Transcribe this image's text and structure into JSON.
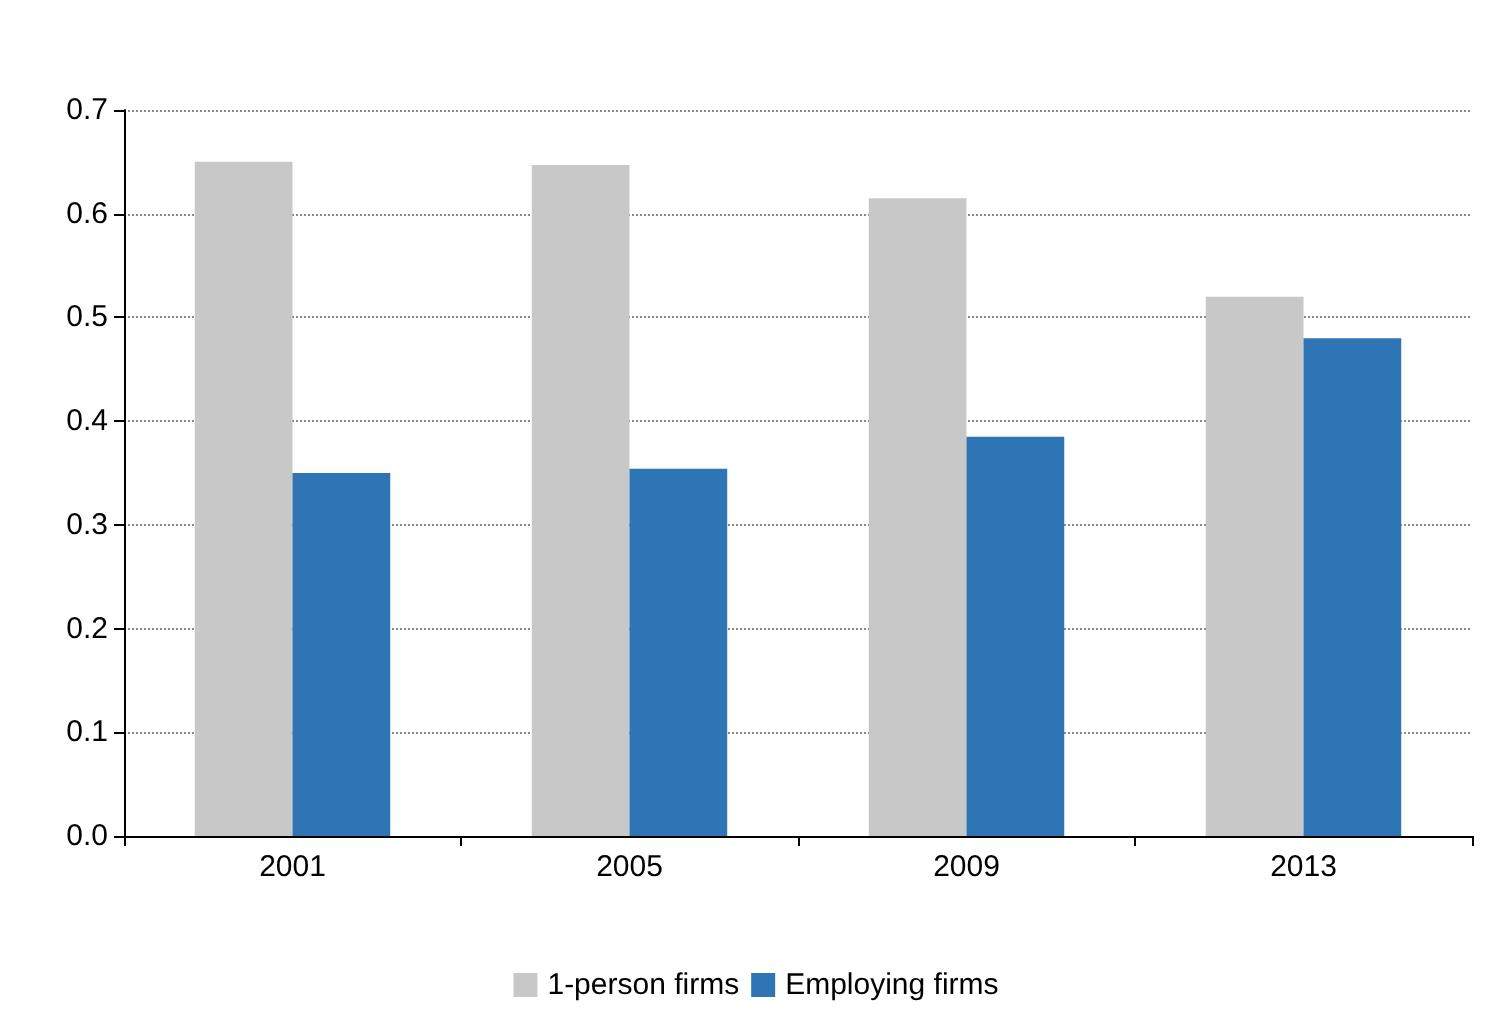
{
  "chart_data": {
    "type": "bar",
    "categories": [
      "2001",
      "2005",
      "2009",
      "2013"
    ],
    "series": [
      {
        "name": "1-person firms",
        "color": "#c8c8c8",
        "values": [
          0.65,
          0.647,
          0.615,
          0.52
        ]
      },
      {
        "name": "Employing firms",
        "color": "#2e75b6",
        "values": [
          0.35,
          0.354,
          0.385,
          0.48
        ]
      }
    ],
    "ylim": [
      0,
      0.7
    ],
    "yticks": [
      {
        "value": 0,
        "label": "0.0"
      },
      0.1,
      0.2,
      0.3,
      0.4,
      0.5,
      0.6,
      0.7
    ],
    "grid": "y",
    "legend": "bottom"
  }
}
